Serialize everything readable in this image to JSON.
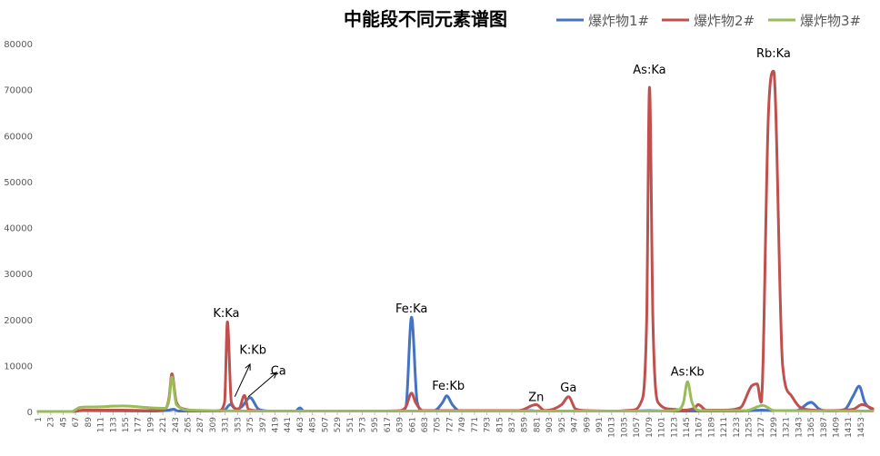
{
  "chart_data": {
    "type": "line",
    "title": "中能段不同元素谱图",
    "xlabel": "",
    "ylabel": "",
    "ylim": [
      0,
      80000
    ],
    "xlim": [
      1,
      1474
    ],
    "y_ticks": [
      0,
      10000,
      20000,
      30000,
      40000,
      50000,
      60000,
      70000,
      80000
    ],
    "x_ticks": [
      1,
      23,
      45,
      67,
      89,
      111,
      133,
      155,
      177,
      199,
      221,
      243,
      265,
      287,
      309,
      331,
      353,
      375,
      397,
      419,
      441,
      463,
      485,
      507,
      529,
      551,
      573,
      595,
      617,
      639,
      661,
      683,
      705,
      727,
      749,
      771,
      793,
      815,
      837,
      859,
      881,
      903,
      925,
      947,
      969,
      991,
      1013,
      1035,
      1057,
      1079,
      1101,
      1123,
      1145,
      1167,
      1189,
      1211,
      1233,
      1255,
      1277,
      1299,
      1321,
      1343,
      1365,
      1387,
      1409,
      1431,
      1453
    ],
    "grid": false,
    "legend_position": "top-right",
    "series": [
      {
        "name": "爆炸物1#",
        "color": "#4472C4",
        "x": [
          1,
          60,
          80,
          150,
          200,
          232,
          240,
          248,
          300,
          320,
          330,
          340,
          350,
          360,
          375,
          390,
          410,
          455,
          463,
          470,
          500,
          600,
          640,
          650,
          660,
          670,
          680,
          700,
          715,
          722,
          732,
          745,
          850,
          870,
          880,
          1050,
          1080,
          1110,
          1140,
          1240,
          1280,
          1300,
          1340,
          1365,
          1380,
          1400,
          1425,
          1440,
          1450,
          1460,
          1474
        ],
        "y": [
          0,
          0,
          200,
          150,
          100,
          300,
          500,
          100,
          100,
          100,
          300,
          1500,
          500,
          1000,
          3000,
          500,
          100,
          100,
          800,
          100,
          100,
          100,
          100,
          1000,
          20500,
          2000,
          200,
          200,
          2000,
          3400,
          1500,
          100,
          100,
          200,
          100,
          100,
          200,
          100,
          100,
          100,
          300,
          200,
          200,
          2000,
          500,
          100,
          500,
          3500,
          5500,
          2000,
          300
        ]
      },
      {
        "name": "爆炸物2#",
        "color": "#C0504D",
        "x": [
          1,
          60,
          80,
          150,
          200,
          225,
          232,
          237,
          245,
          260,
          280,
          310,
          320,
          330,
          335,
          342,
          355,
          365,
          372,
          385,
          400,
          450,
          600,
          640,
          650,
          660,
          667,
          680,
          700,
          850,
          880,
          895,
          925,
          937,
          950,
          970,
          1020,
          1050,
          1065,
          1075,
          1080,
          1086,
          1095,
          1120,
          1140,
          1160,
          1166,
          1180,
          1210,
          1240,
          1260,
          1270,
          1277,
          1290,
          1299,
          1315,
          1330,
          1345,
          1370,
          1400,
          1440,
          1455,
          1474
        ],
        "y": [
          0,
          0,
          300,
          300,
          200,
          500,
          3000,
          8200,
          2000,
          500,
          200,
          100,
          200,
          2000,
          19500,
          2000,
          500,
          3500,
          500,
          200,
          100,
          100,
          100,
          200,
          1000,
          4000,
          2000,
          200,
          200,
          200,
          1500,
          200,
          1500,
          3200,
          500,
          200,
          100,
          300,
          2000,
          20000,
          70500,
          20000,
          2000,
          500,
          300,
          800,
          1500,
          300,
          300,
          800,
          5500,
          6000,
          2000,
          65000,
          74000,
          10000,
          3500,
          1000,
          300,
          200,
          500,
          1500,
          600
        ]
      },
      {
        "name": "爆炸物3#",
        "color": "#9BBB59",
        "x": [
          1,
          60,
          75,
          100,
          150,
          200,
          225,
          232,
          237,
          245,
          270,
          400,
          1100,
          1130,
          1140,
          1147,
          1155,
          1170,
          1250,
          1280,
          1300,
          1474
        ],
        "y": [
          0,
          0,
          900,
          1000,
          1200,
          800,
          700,
          2500,
          7500,
          1500,
          300,
          100,
          100,
          300,
          2000,
          6500,
          2000,
          200,
          200,
          1300,
          200,
          100
        ]
      }
    ],
    "annotations": [
      {
        "text": "K:Ka",
        "x": 333,
        "y": 20500
      },
      {
        "text": "K:Kb",
        "x": 380,
        "y": 12500
      },
      {
        "text": "Ca",
        "x": 425,
        "y": 8000
      },
      {
        "text": "Fe:Ka",
        "x": 660,
        "y": 21500
      },
      {
        "text": "Fe:Kb",
        "x": 725,
        "y": 4700
      },
      {
        "text": "Zn",
        "x": 880,
        "y": 2300
      },
      {
        "text": "Ga",
        "x": 937,
        "y": 4300
      },
      {
        "text": "As:Ka",
        "x": 1080,
        "y": 73500
      },
      {
        "text": "As:Kb",
        "x": 1147,
        "y": 7800
      },
      {
        "text": "Rb:Ka",
        "x": 1299,
        "y": 77000
      }
    ],
    "arrows": [
      {
        "from": [
          348,
          3200
        ],
        "to": [
          375,
          10300
        ]
      },
      {
        "from": [
          372,
          3200
        ],
        "to": [
          422,
          8500
        ]
      }
    ]
  }
}
